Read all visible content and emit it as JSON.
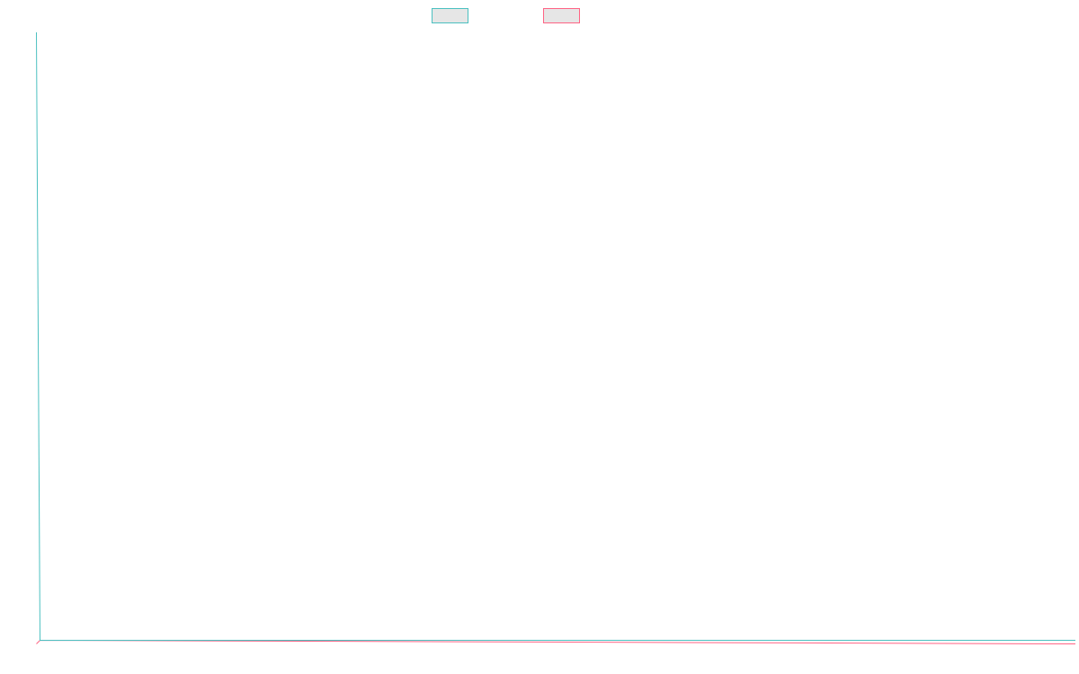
{
  "chart_data": {
    "type": "line",
    "title": "",
    "xlabel": "",
    "ylabel": "",
    "categories": [],
    "series": [
      {
        "color": "#4bc0c0",
        "fill": "#e6e6e6",
        "values": []
      },
      {
        "color": "#ff6384",
        "fill": "#e6e6e6",
        "values": []
      }
    ],
    "grid": false,
    "legend_position": "top"
  }
}
